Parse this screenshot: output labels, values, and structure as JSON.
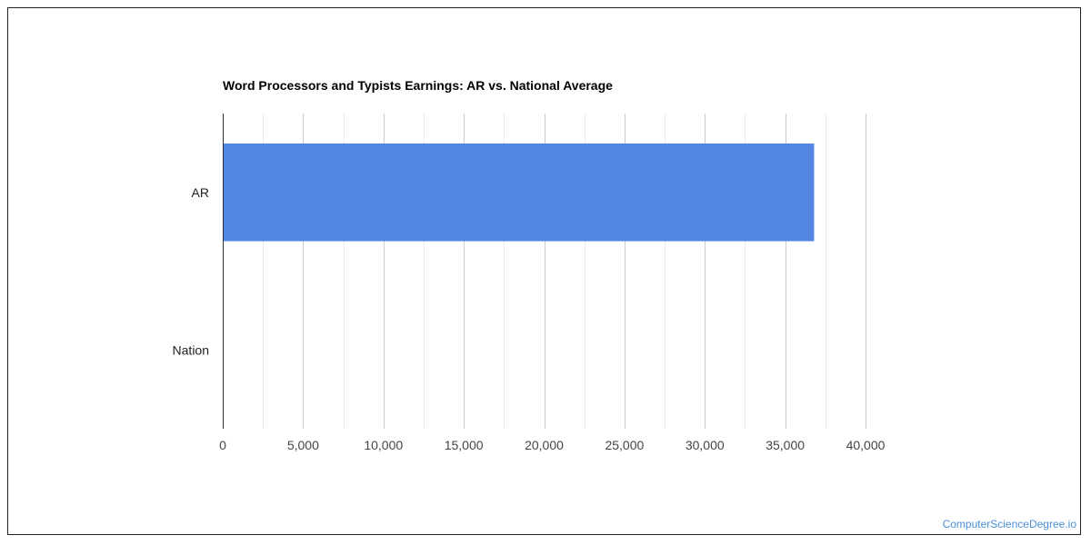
{
  "chart_data": {
    "type": "bar",
    "orientation": "horizontal",
    "title": "Word Processors and Typists Earnings: AR vs. National Average",
    "categories": [
      "AR",
      "Nation"
    ],
    "values": [
      36800,
      null
    ],
    "xlim": [
      0,
      40000
    ],
    "x_ticks": [
      0,
      5000,
      10000,
      15000,
      20000,
      25000,
      30000,
      35000,
      40000
    ],
    "x_tick_labels": [
      "0",
      "5,000",
      "10,000",
      "15,000",
      "20,000",
      "25,000",
      "30,000",
      "35,000",
      "40,000"
    ],
    "grid": true,
    "legend": "none",
    "bar_color": "#5386e4"
  },
  "footer": {
    "watermark": "ComputerScienceDegree.io",
    "watermark_color": "#4a8fd8"
  }
}
